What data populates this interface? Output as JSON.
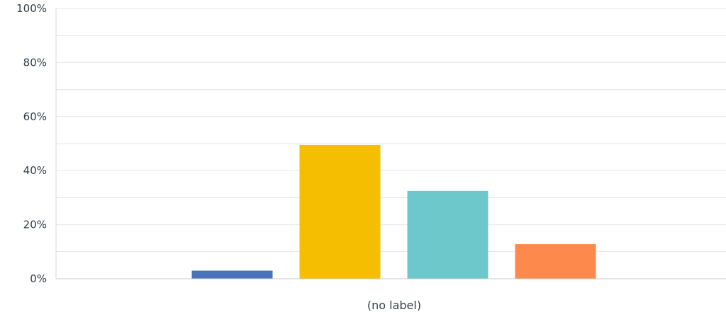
{
  "chart_data": {
    "type": "bar",
    "categories": [
      "(no label)"
    ],
    "series": [
      {
        "values": [
          3
        ],
        "color": "#4a74b7"
      },
      {
        "values": [
          49.5
        ],
        "color": "#f6be00"
      },
      {
        "values": [
          32.5
        ],
        "color": "#6cc8cb"
      },
      {
        "values": [
          12.8
        ],
        "color": "#fd8a4c"
      }
    ],
    "y_ticks": [
      "0%",
      "20%",
      "40%",
      "60%",
      "80%",
      "100%"
    ],
    "ylim": [
      0,
      100
    ],
    "grid": true,
    "legend": "none"
  }
}
